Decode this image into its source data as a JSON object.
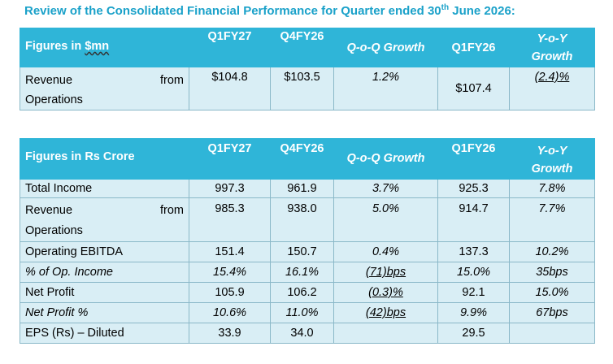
{
  "title_main": "Review of the Consolidated Financial Performance for Quarter ended 30",
  "title_sup": "th",
  "title_end": " June 2026:",
  "table1": {
    "header": {
      "label_a": "Figures in ",
      "label_b": "$mn",
      "q1fy27": "Q1FY27",
      "q4fy26": "Q4FY26",
      "qoq": "Q-o-Q Growth",
      "q1fy26": "Q1FY26",
      "yoy_1": "Y-o-Y",
      "yoy_2": "Growth"
    },
    "rows": [
      {
        "label_1": "Revenue",
        "label_2": "from",
        "label_3": "Operations",
        "q1fy27": "$104.8",
        "q4fy26": "$103.5",
        "qoq": "1.2%",
        "q1fy26": "$107.4",
        "yoy": "(2.4)%"
      }
    ]
  },
  "table2": {
    "header": {
      "label": "Figures in Rs Crore",
      "q1fy27": "Q1FY27",
      "q4fy26": "Q4FY26",
      "qoq": "Q-o-Q Growth",
      "q1fy26": "Q1FY26",
      "yoy_1": "Y-o-Y",
      "yoy_2": "Growth"
    },
    "rows": [
      {
        "label": "Total Income",
        "q1fy27": "997.3",
        "q4fy26": "961.9",
        "qoq": "3.7%",
        "q1fy26": "925.3",
        "yoy": "7.8%"
      },
      {
        "label_1": "Revenue",
        "label_2": "from",
        "label_3": "Operations",
        "q1fy27": "985.3",
        "q4fy26": "938.0",
        "qoq": "5.0%",
        "q1fy26": "914.7",
        "yoy": "7.7%"
      },
      {
        "label": "Operating EBITDA",
        "q1fy27": "151.4",
        "q4fy26": "150.7",
        "qoq": "0.4%",
        "q1fy26": "137.3",
        "yoy": "10.2%"
      },
      {
        "label": "% of Op. Income",
        "q1fy27": "15.4%",
        "q4fy26": "16.1%",
        "qoq": "(71)bps",
        "q1fy26": "15.0%",
        "yoy": "35bps"
      },
      {
        "label": "Net Profit",
        "q1fy27": "105.9",
        "q4fy26": "106.2",
        "qoq": "(0.3)%",
        "q1fy26": "92.1",
        "yoy": "15.0%"
      },
      {
        "label": "Net Profit %",
        "q1fy27": "10.6%",
        "q4fy26": "11.0%",
        "qoq": "(42)bps",
        "q1fy26": "9.9%",
        "yoy": "67bps"
      },
      {
        "label": "EPS (Rs) – Diluted",
        "q1fy27": "33.9",
        "q4fy26": "34.0",
        "qoq": "",
        "q1fy26": "29.5",
        "yoy": ""
      }
    ]
  }
}
